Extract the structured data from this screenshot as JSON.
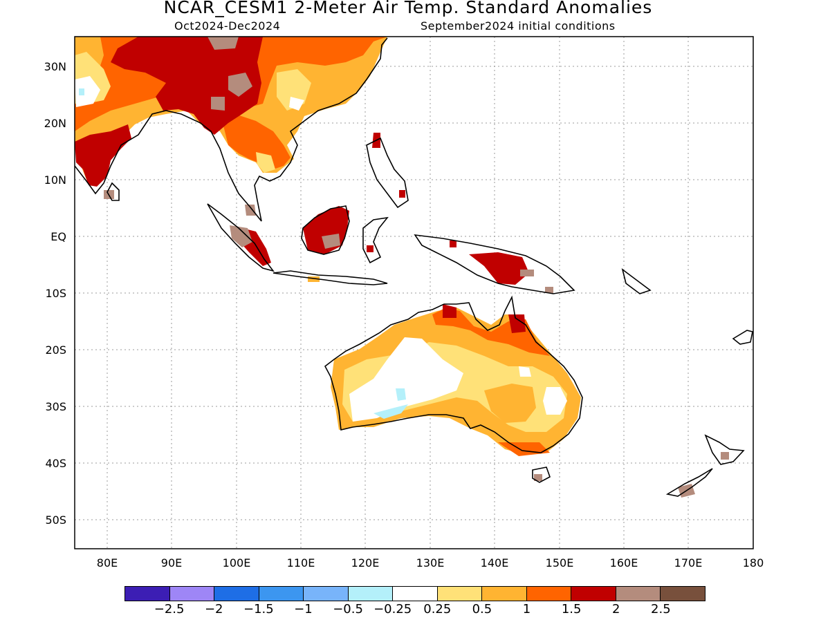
{
  "header": {
    "title": "NCAR_CESM1 2-Meter Air Temp. Standard Anomalies",
    "period": "Oct2024-Dec2024",
    "init": "September2024 initial conditions"
  },
  "map": {
    "lon_range": [
      75,
      180
    ],
    "lat_range": [
      -55,
      35
    ],
    "lat_labels": [
      "30N",
      "20N",
      "10N",
      "EQ",
      "10S",
      "20S",
      "30S",
      "40S",
      "50S"
    ],
    "lon_labels": [
      "80E",
      "90E",
      "100E",
      "110E",
      "120E",
      "130E",
      "140E",
      "150E",
      "160E",
      "170E",
      "180"
    ]
  },
  "colorbar": {
    "colors": [
      "#3c1eb4",
      "#9e86f6",
      "#1e6ee6",
      "#3c96f0",
      "#78b4fa",
      "#b4f0fa",
      "#ffffff",
      "#ffe178",
      "#ffb432",
      "#ff6400",
      "#c00000",
      "#b48c7d",
      "#78503c"
    ],
    "labels": [
      "-2.5",
      "-2",
      "-1.5",
      "-1",
      "-0.5",
      "-0.25",
      "0.25",
      "0.5",
      "1",
      "1.5",
      "2",
      "2.5"
    ]
  }
}
